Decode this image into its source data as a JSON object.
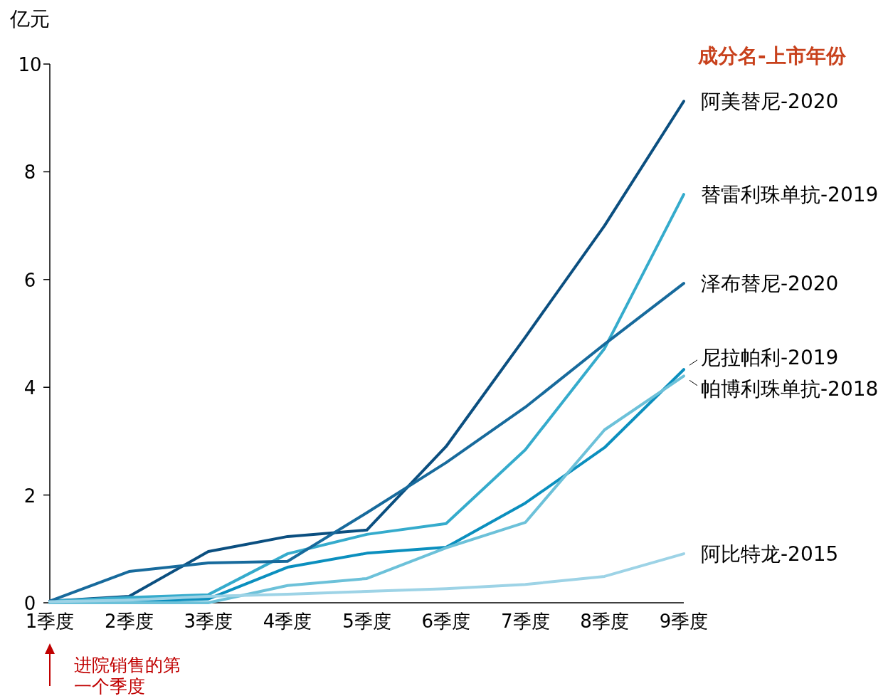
{
  "chart_data": {
    "type": "line",
    "ylabel": "亿元",
    "legend_title": "成分名-上市年份",
    "categories": [
      "1季度",
      "2季度",
      "3季度",
      "4季度",
      "5季度",
      "6季度",
      "7季度",
      "8季度",
      "9季度"
    ],
    "ylim": [
      0,
      10
    ],
    "yticks": [
      0,
      2,
      4,
      6,
      8,
      10
    ],
    "grid": false,
    "marker": "none",
    "line_style": "solid",
    "series": [
      {
        "name": "阿美替尼-2020",
        "color": "#0b4f80",
        "values": [
          0.03,
          0.12,
          0.95,
          1.23,
          1.35,
          2.9,
          4.93,
          7.0,
          9.31
        ]
      },
      {
        "name": "替雷利珠单抗-2019",
        "color": "#35abcc",
        "values": [
          0.03,
          0.1,
          0.15,
          0.91,
          1.27,
          1.47,
          2.84,
          4.72,
          7.58
        ]
      },
      {
        "name": "泽布替尼-2020",
        "color": "#176a9c",
        "values": [
          0.03,
          0.58,
          0.74,
          0.77,
          1.67,
          2.6,
          3.63,
          4.8,
          5.93
        ]
      },
      {
        "name": "尼拉帕利-2019",
        "color": "#0b8fbe",
        "values": [
          0,
          0.03,
          0.07,
          0.66,
          0.92,
          1.03,
          1.85,
          2.88,
          4.33
        ]
      },
      {
        "name": "帕博利珠单抗-2018",
        "color": "#6cc1d9",
        "values": [
          0,
          0,
          0,
          0.32,
          0.45,
          1.02,
          1.49,
          3.21,
          4.21
        ]
      },
      {
        "name": "阿比特龙-2015",
        "color": "#9dd3e6",
        "values": [
          0.02,
          0.05,
          0.12,
          0.16,
          0.21,
          0.26,
          0.34,
          0.49,
          0.91
        ]
      }
    ],
    "annotations": [
      "进院销售的第一个季度"
    ]
  }
}
